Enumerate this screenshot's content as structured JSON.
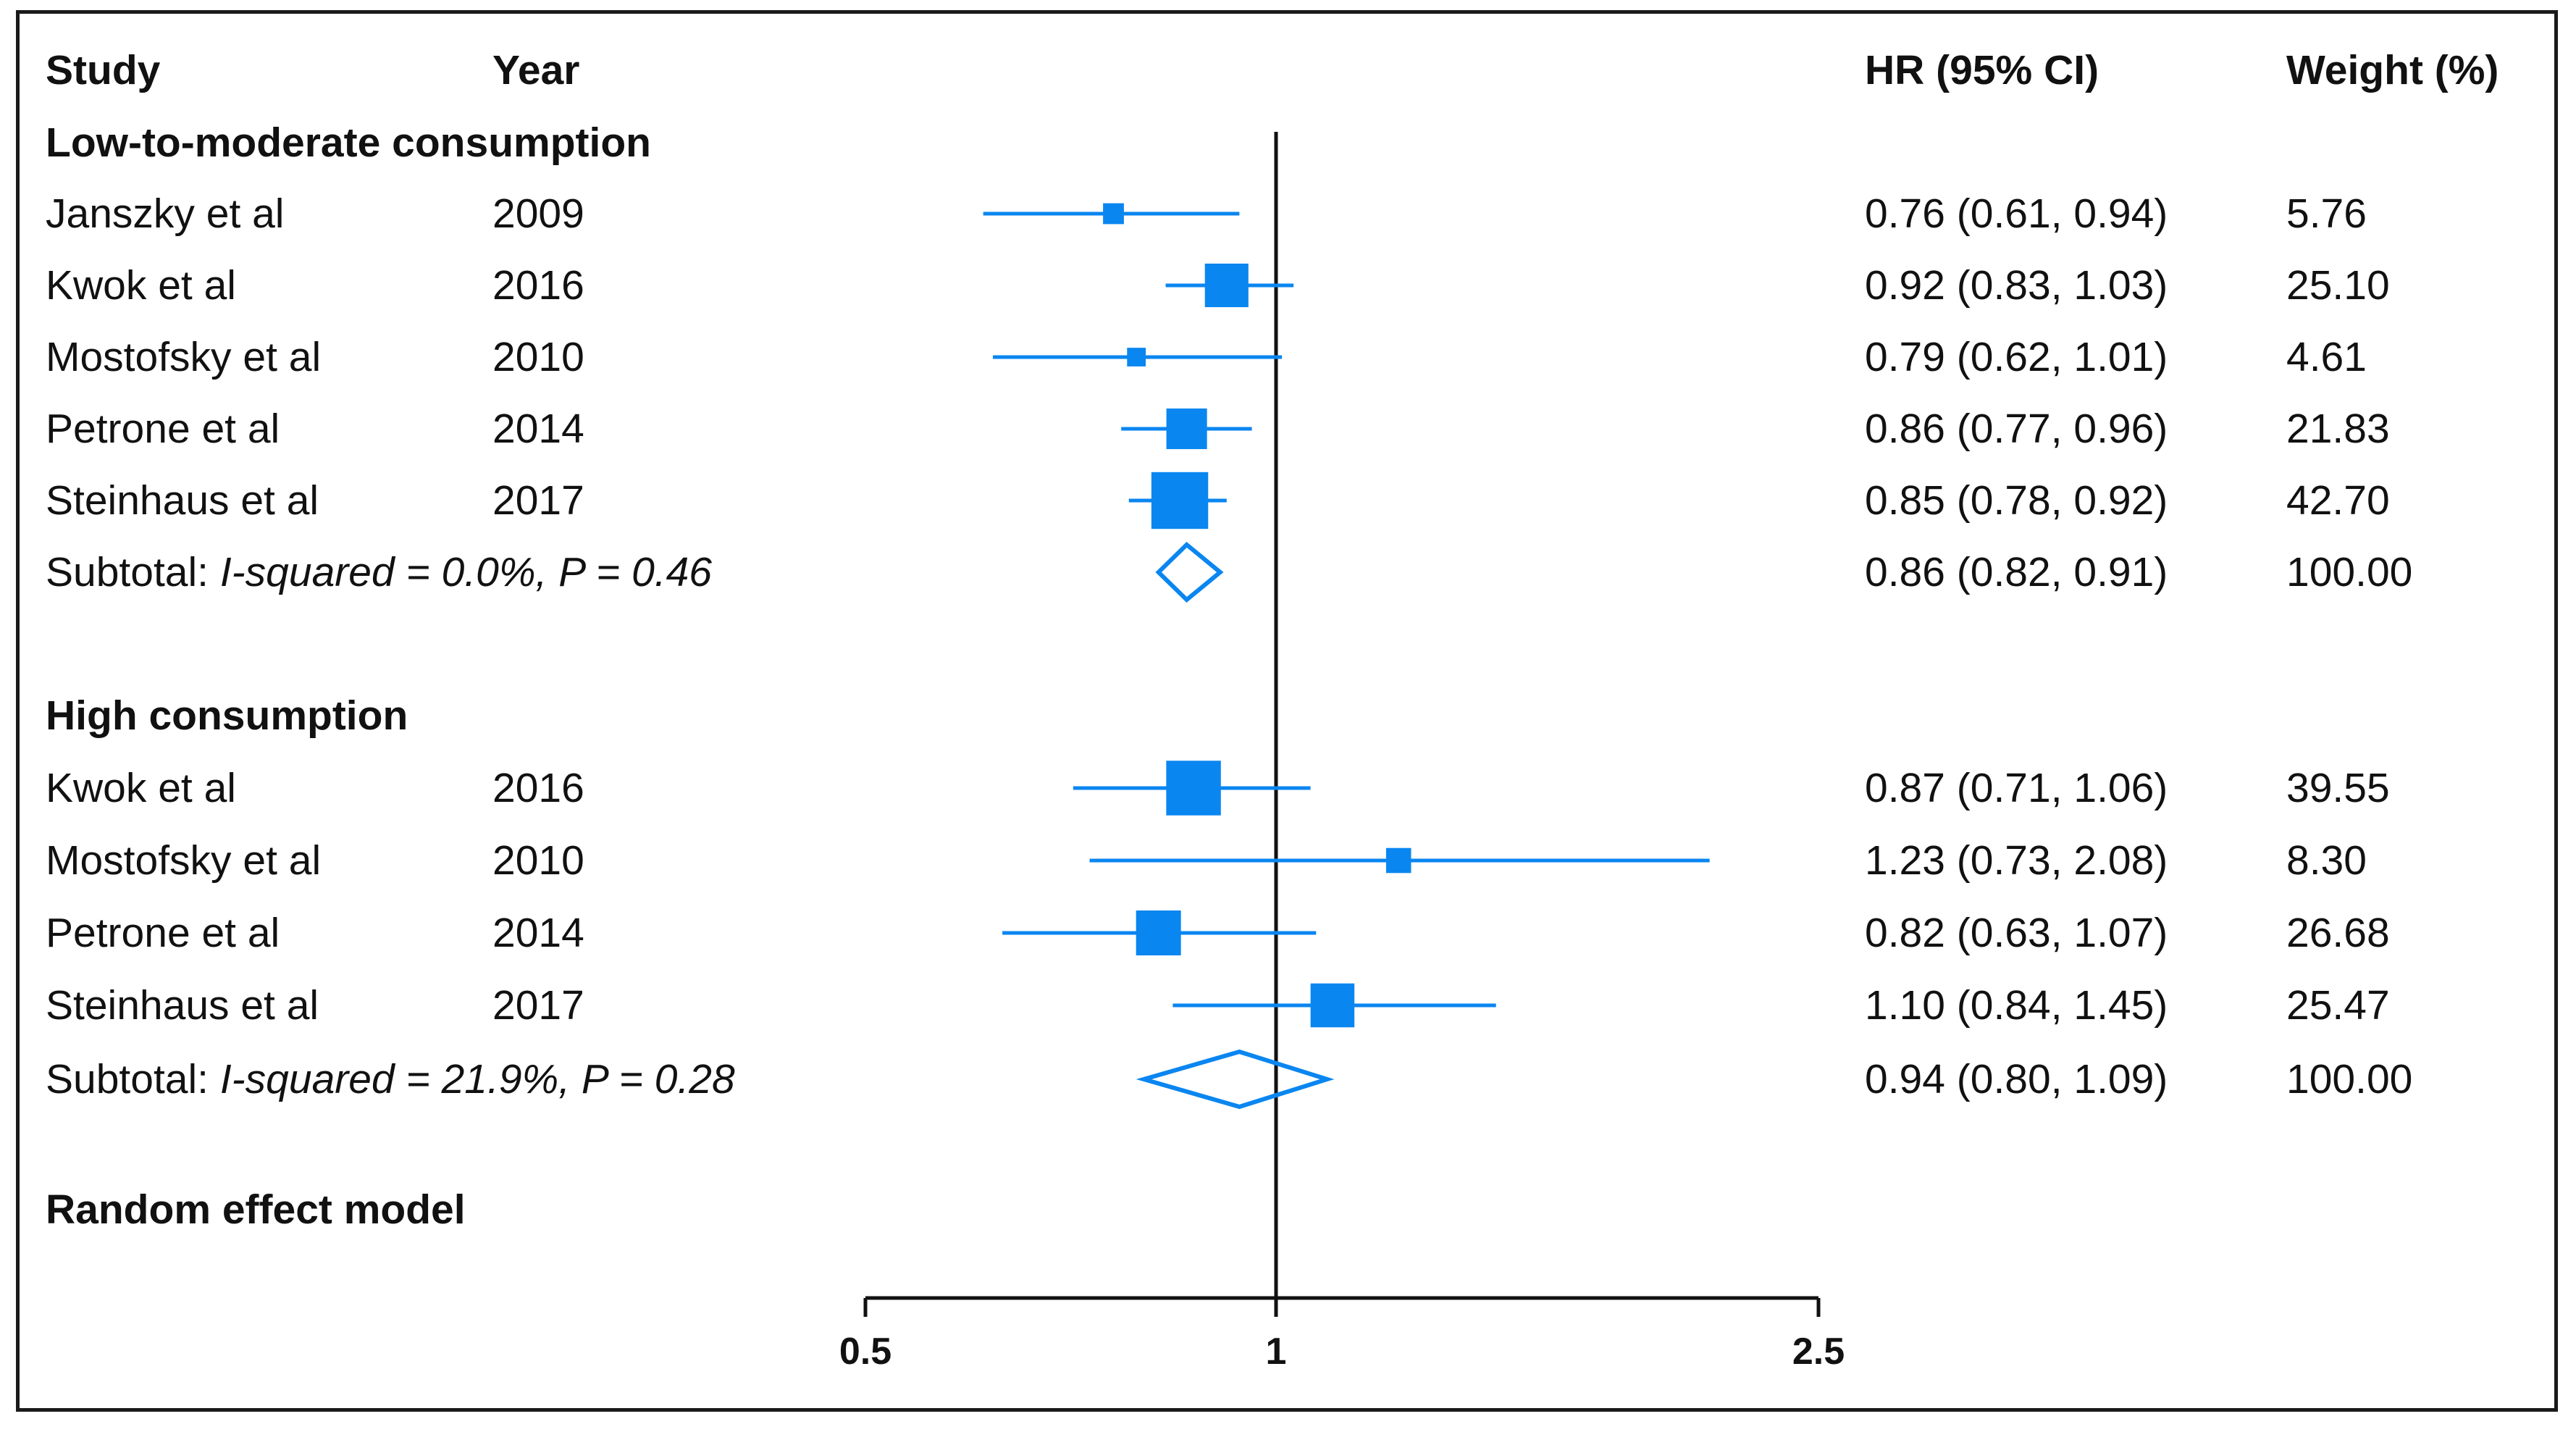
{
  "headers": {
    "study": "Study",
    "year": "Year",
    "hr": "HR (95% CI)",
    "weight": "Weight (%)"
  },
  "groups": [
    {
      "title": "Low-to-moderate consumption",
      "studies": [
        {
          "study": "Janszky et al",
          "year": "2009",
          "hr_text": "0.76 (0.61, 0.94)",
          "weight": "5.76",
          "hr": 0.76,
          "lo": 0.61,
          "hi": 0.94,
          "w": 5.76
        },
        {
          "study": "Kwok et al",
          "year": "2016",
          "hr_text": "0.92 (0.83, 1.03)",
          "weight": "25.10",
          "hr": 0.92,
          "lo": 0.83,
          "hi": 1.03,
          "w": 25.1
        },
        {
          "study": "Mostofsky et al",
          "year": "2010",
          "hr_text": "0.79 (0.62, 1.01)",
          "weight": "4.61",
          "hr": 0.79,
          "lo": 0.62,
          "hi": 1.01,
          "w": 4.61
        },
        {
          "study": "Petrone et al",
          "year": "2014",
          "hr_text": "0.86 (0.77, 0.96)",
          "weight": "21.83",
          "hr": 0.86,
          "lo": 0.77,
          "hi": 0.96,
          "w": 21.83
        },
        {
          "study": "Steinhaus et al",
          "year": "2017",
          "hr_text": "0.85 (0.78, 0.92)",
          "weight": "42.70",
          "hr": 0.85,
          "lo": 0.78,
          "hi": 0.92,
          "w": 42.7
        }
      ],
      "subtotal": {
        "label": "Subtotal: ",
        "stats": "I-squared = 0.0%, P = 0.46",
        "hr_text": "0.86 (0.82, 0.91)",
        "weight": "100.00",
        "hr": 0.86,
        "lo": 0.82,
        "hi": 0.91
      }
    },
    {
      "title": "High consumption",
      "studies": [
        {
          "study": "Kwok et al",
          "year": "2016",
          "hr_text": "0.87 (0.71, 1.06)",
          "weight": "39.55",
          "hr": 0.87,
          "lo": 0.71,
          "hi": 1.06,
          "w": 39.55
        },
        {
          "study": "Mostofsky et al",
          "year": "2010",
          "hr_text": "1.23 (0.73, 2.08)",
          "weight": "8.30",
          "hr": 1.23,
          "lo": 0.73,
          "hi": 2.08,
          "w": 8.3
        },
        {
          "study": "Petrone et al",
          "year": "2014",
          "hr_text": "0.82 (0.63, 1.07)",
          "weight": "26.68",
          "hr": 0.82,
          "lo": 0.63,
          "hi": 1.07,
          "w": 26.68
        },
        {
          "study": "Steinhaus et al",
          "year": "2017",
          "hr_text": "1.10 (0.84, 1.45)",
          "weight": "25.47",
          "hr": 1.1,
          "lo": 0.84,
          "hi": 1.45,
          "w": 25.47
        }
      ],
      "subtotal": {
        "label": "Subtotal: ",
        "stats": "I-squared = 21.9%, P = 0.28",
        "hr_text": "0.94 (0.80, 1.09)",
        "weight": "100.00",
        "hr": 0.94,
        "lo": 0.8,
        "hi": 1.09
      }
    }
  ],
  "footer_label": "Random effect model",
  "chart_data": {
    "type": "forest",
    "scale": "log",
    "axis_ticks": [
      0.5,
      1,
      2.5
    ],
    "axis_tick_labels": [
      "0.5",
      "1",
      "2.5"
    ],
    "reference_line": 1,
    "xlim": [
      0.5,
      2.5
    ],
    "marker_color": "#0a86f0"
  }
}
